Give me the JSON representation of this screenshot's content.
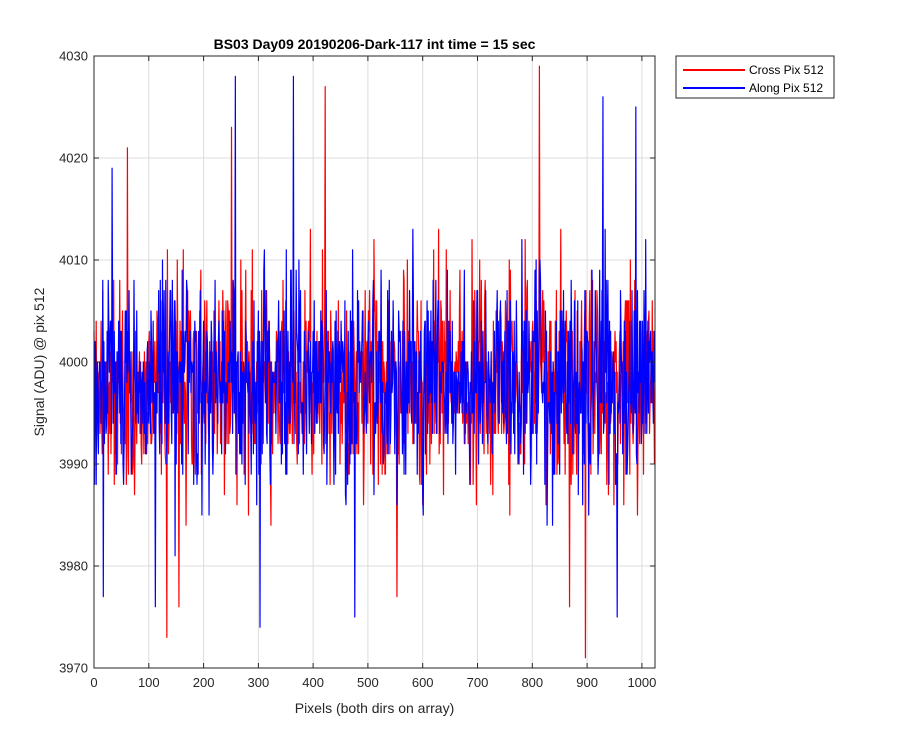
{
  "chart_data": {
    "type": "line",
    "title": "BS03 Day09 20190206-Dark-117 int time = 15 sec",
    "xlabel": "Pixels (both dirs on array)",
    "ylabel": "Signal (ADU) @ pix 512",
    "xlim": [
      0,
      1024
    ],
    "ylim": [
      3970,
      4030
    ],
    "xticks": [
      0,
      100,
      200,
      300,
      400,
      500,
      600,
      700,
      800,
      900,
      1000
    ],
    "yticks": [
      3970,
      3980,
      3990,
      4000,
      4010,
      4020,
      4030
    ],
    "grid": true,
    "legend_position": "outside-top-right",
    "noise": {
      "count": 1024,
      "mean": 3998,
      "spread": 5.2,
      "min": 3971,
      "max": 4029
    },
    "series": [
      {
        "name": "Cross Pix 512",
        "color": "#ff0000",
        "seed": 11,
        "extremes": [
          {
            "x": 133,
            "y": 3973
          },
          {
            "x": 422,
            "y": 4027
          },
          {
            "x": 813,
            "y": 4029
          },
          {
            "x": 897,
            "y": 3971
          },
          {
            "x": 61,
            "y": 4021
          },
          {
            "x": 251,
            "y": 4023
          },
          {
            "x": 155,
            "y": 3976
          },
          {
            "x": 553,
            "y": 3977
          },
          {
            "x": 868,
            "y": 3976
          }
        ]
      },
      {
        "name": "Along Pix 512",
        "color": "#0000ff",
        "seed": 29,
        "extremes": [
          {
            "x": 258,
            "y": 4028
          },
          {
            "x": 364,
            "y": 4028
          },
          {
            "x": 303,
            "y": 3974
          },
          {
            "x": 929,
            "y": 4026
          },
          {
            "x": 989,
            "y": 4025
          },
          {
            "x": 17,
            "y": 3977
          },
          {
            "x": 112,
            "y": 3976
          },
          {
            "x": 476,
            "y": 3975
          },
          {
            "x": 955,
            "y": 3975
          },
          {
            "x": 33,
            "y": 4019
          }
        ]
      }
    ]
  }
}
